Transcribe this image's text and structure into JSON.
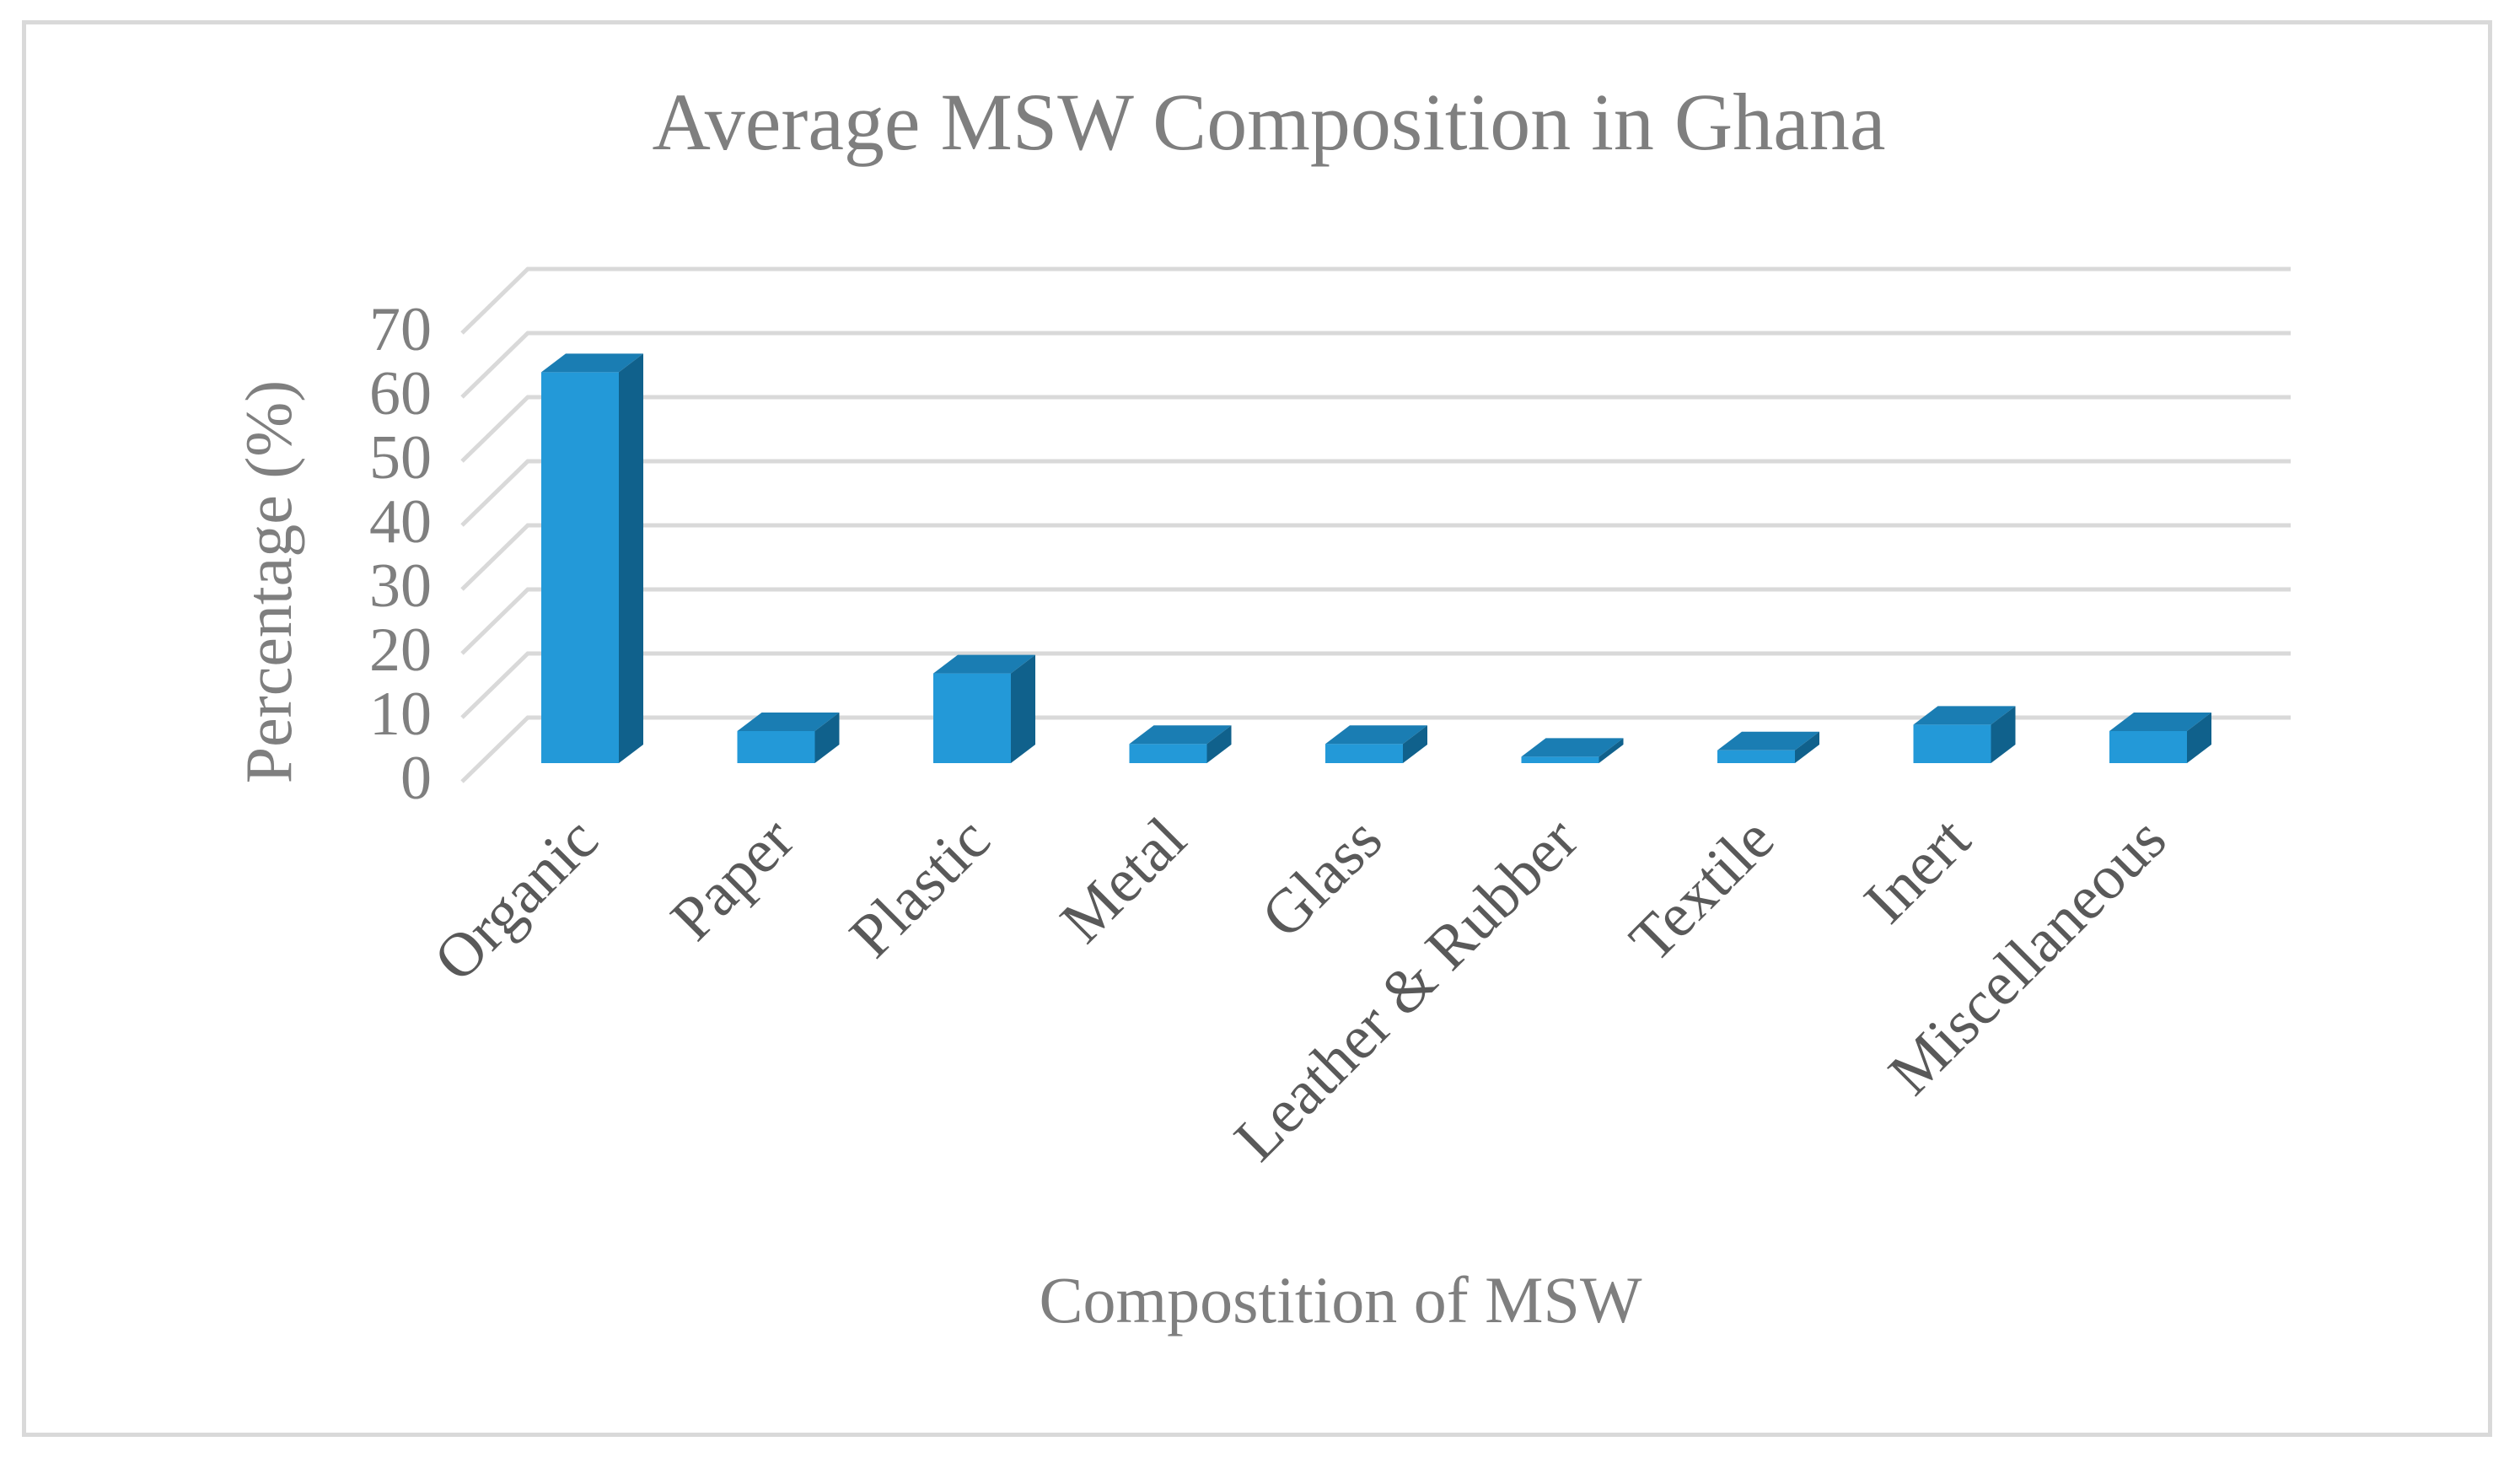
{
  "chart_data": {
    "type": "bar",
    "style": "3d-column",
    "title": "Average MSW Composition in Ghana",
    "xlabel": "Compostition of MSW",
    "ylabel": "Percentage (%)",
    "ylim": [
      0,
      70
    ],
    "y_ticks": [
      "0",
      "10",
      "20",
      "30",
      "40",
      "50",
      "60",
      "70"
    ],
    "categories": [
      "Organic",
      "Paper",
      "Plastic",
      "Metal",
      "Glass",
      "Leather & Rubber",
      "Textile",
      "Inert",
      "Miscellaneous"
    ],
    "values": [
      61,
      5,
      14,
      3,
      3,
      1,
      2,
      6,
      5
    ],
    "grid": true,
    "legend": "none",
    "colors": {
      "bar_front": "#2399d8",
      "bar_top": "#1a7db3",
      "bar_side": "#10618c",
      "grid": "#d9d9d9",
      "text": "#7f7f7f",
      "category_text": "#595959"
    }
  }
}
